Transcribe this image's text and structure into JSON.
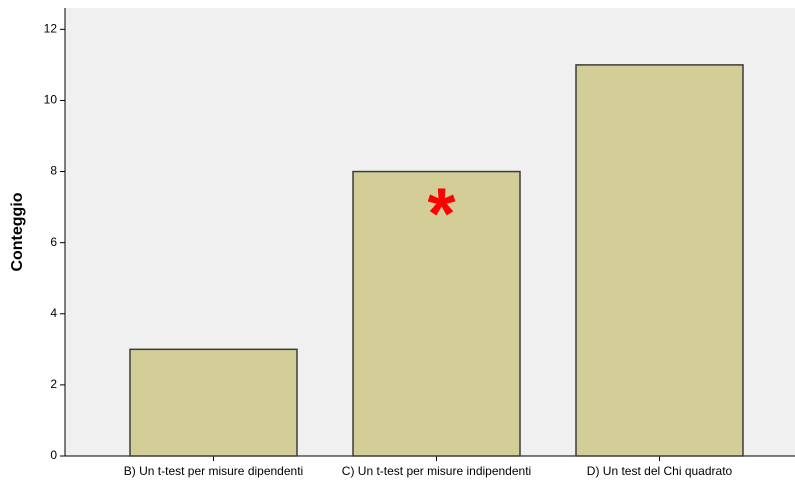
{
  "chart_data": {
    "type": "bar",
    "y_label": "Conteggio",
    "categories": [
      "B) Un t-test per misure dipendenti",
      "C) Un t-test per misure indipendenti",
      "D) Un test del Chi quadrato"
    ],
    "values": [
      3,
      8,
      11
    ],
    "color": "#d3ce98",
    "ylim": [
      0,
      12.6
    ],
    "yticks": [
      0,
      2,
      4,
      6,
      8,
      10,
      12
    ],
    "annotation": {
      "text": "*",
      "category": 1,
      "color": "#ff0000"
    }
  }
}
